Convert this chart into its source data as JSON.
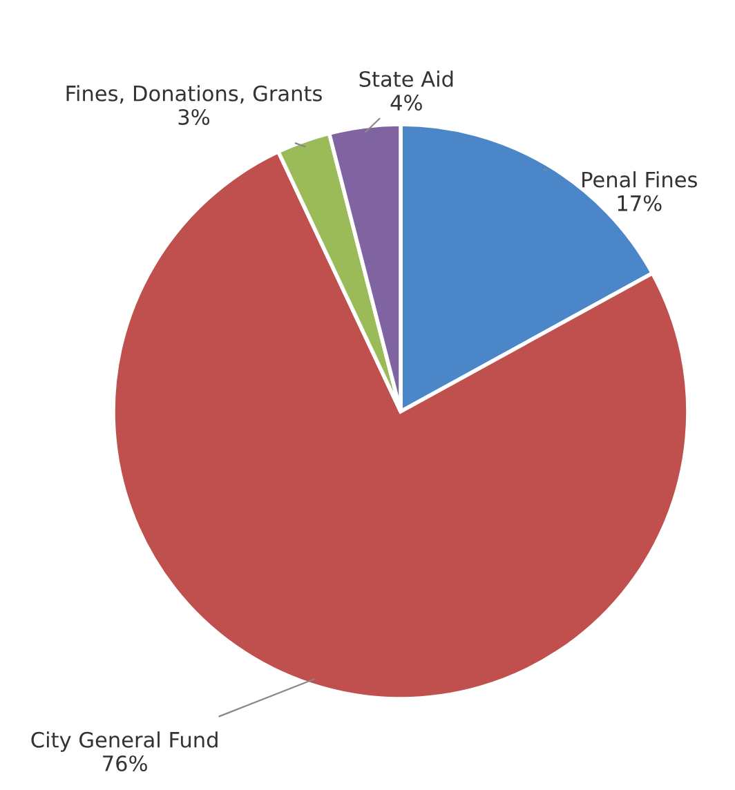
{
  "chart_data": {
    "type": "pie",
    "categories": [
      "Penal Fines",
      "City General Fund",
      "Fines, Donations, Grants",
      "State Aid"
    ],
    "values": [
      17,
      76,
      3,
      4
    ],
    "value_labels": [
      "17%",
      "76%",
      "3%",
      "4%"
    ],
    "colors": [
      "#4a86c8",
      "#c0504d",
      "#9bbb59",
      "#8064a2"
    ],
    "legend": false
  }
}
